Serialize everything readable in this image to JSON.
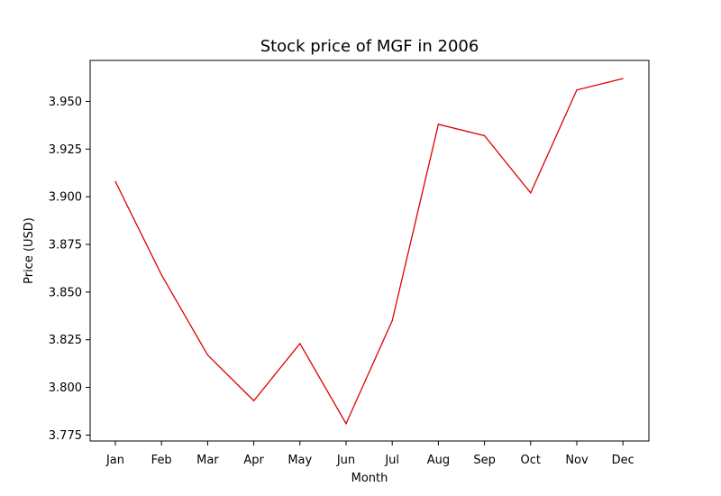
{
  "chart_data": {
    "type": "line",
    "title": "Stock price of MGF in 2006",
    "xlabel": "Month",
    "ylabel": "Price (USD)",
    "categories": [
      "Jan",
      "Feb",
      "Mar",
      "Apr",
      "May",
      "Jun",
      "Jul",
      "Aug",
      "Sep",
      "Oct",
      "Nov",
      "Dec"
    ],
    "series": [
      {
        "values": [
          3.908,
          3.859,
          3.817,
          3.793,
          3.823,
          3.781,
          3.835,
          3.938,
          3.932,
          3.902,
          3.956,
          3.962
        ],
        "color": "#dd0000"
      }
    ],
    "ylim": [
      3.7719,
      3.9715
    ],
    "yticks": [
      3.775,
      3.8,
      3.825,
      3.85,
      3.875,
      3.9,
      3.925,
      3.95
    ],
    "ytick_labels": [
      "3.775",
      "3.800",
      "3.825",
      "3.850",
      "3.875",
      "3.900",
      "3.925",
      "3.950"
    ],
    "grid": false,
    "legend": "none"
  }
}
